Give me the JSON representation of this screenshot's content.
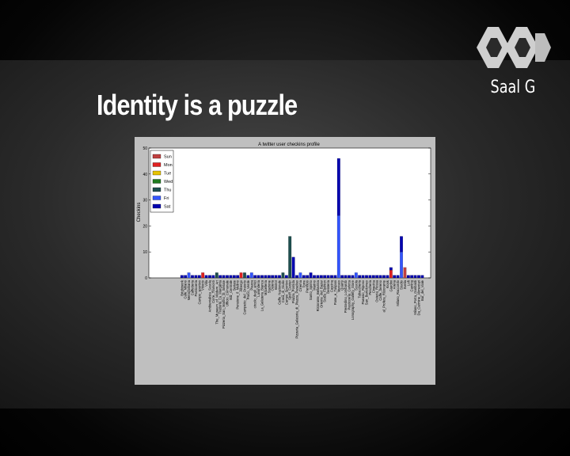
{
  "slide": {
    "title": "Identity is a puzzle",
    "logo_text": "Saal G",
    "logo_icon": "saal-g-logo-icon"
  },
  "colors": {
    "Sun": "#c04040",
    "Mon": "#e02020",
    "Tue": "#e6c200",
    "Wed": "#1f7a1f",
    "Thu": "#1e4f4f",
    "Fri": "#3355ff",
    "Sat": "#0000b0"
  },
  "chart_data": {
    "type": "bar",
    "title": "A twitter user checkins profile",
    "xlabel": "",
    "ylabel": "Checkins",
    "ylim": [
      0,
      50
    ],
    "yticks": [
      0,
      10,
      20,
      30,
      40,
      50
    ],
    "legend_position": "top-left",
    "stacked": true,
    "categories": [
      "Brightwork",
      "Cafe_Milano",
      "Metropolitana",
      "Caffetteria",
      "Pasticceria",
      "Campo_sportivo",
      "Vittorio",
      "Villa",
      "Ambientalista_Scuola",
      "Corte_Tramonti",
      "The_Museum_of_Modern_Art",
      "Trattoria_La_Margarita",
      "Pizzeria_San_Marino_di_Seriate",
      "Ufficio_Comunale",
      "Bar_Centrale",
      "Seriate",
      "Pensione_Il_Mulino",
      "Albergo",
      "Campetto_del_Oratorio",
      "Parco_Verde",
      "Piazza",
      "circolo_degli_amici",
      "Lavanderia",
      "La_Gelateria_Bianca",
      "Macelleria",
      "Stazione",
      "Osteria",
      "Bistrot",
      "Caffe_Nazionale",
      "Casa_di_Giulio",
      "Campo_Sportivo",
      "Sport_Center",
      "Piazza_Pontida",
      "Pizzeria_Gelatoria_di_Piazza_Paradiso",
      "Cinema",
      "Torre",
      "Panificio",
      "Santo_Spirito",
      "Marino",
      "Ristorante_Bellavista",
      "Oriente_del_Bazar",
      "Scala_Fashion",
      "Gelateria",
      "Cascina",
      "Pane_e_Tulipani",
      "Mercato",
      "Quarry",
      "Prestedino_Lombardo",
      "Pasticceria_Carlotta",
      "Lonography_Gallery_Store",
      "Scuola",
      "Tabaccheria",
      "Paeasio_Riposo",
      "San_Bartolomeo",
      "Pescheria",
      "Cinecitta",
      "Osteria_Rossa",
      "Caffe_Sereno",
      "al_Profeta_Ristorante",
      "Kiosk",
      "Giardini",
      "Arena",
      "Milano_Raccordo",
      "Studio",
      "Svelia",
      "Loft",
      "Cantina",
      "Milano_Porta_Garibaldi",
      "Da_Carmine_Alimentari",
      "Bar_del_Viale"
    ],
    "series": [
      {
        "name": "Sun",
        "values": [
          0,
          0,
          0,
          0,
          0,
          0,
          0,
          0,
          0,
          0,
          0,
          0,
          0,
          0,
          0,
          0,
          0,
          0,
          0,
          0,
          0,
          0,
          0,
          0,
          0,
          0,
          0,
          0,
          0,
          0,
          0,
          0,
          0,
          0,
          0,
          0,
          0,
          0,
          0,
          0,
          0,
          0,
          0,
          0,
          0,
          0,
          0,
          0,
          0,
          0,
          0,
          0,
          0,
          0,
          0,
          0,
          0,
          0,
          0,
          0,
          0,
          0,
          0,
          0,
          4,
          0,
          0,
          0,
          0,
          0
        ]
      },
      {
        "name": "Mon",
        "values": [
          0,
          0,
          0,
          0,
          0,
          0,
          2,
          0,
          0,
          0,
          0,
          0,
          0,
          0,
          0,
          0,
          0,
          2,
          0,
          0,
          0,
          0,
          0,
          0,
          0,
          0,
          0,
          0,
          0,
          0,
          0,
          0,
          0,
          0,
          0,
          0,
          0,
          0,
          0,
          0,
          0,
          0,
          0,
          0,
          0,
          0,
          0,
          0,
          0,
          0,
          0,
          0,
          0,
          0,
          0,
          0,
          0,
          0,
          0,
          0,
          3,
          0,
          0,
          0,
          0,
          0,
          0,
          0,
          0,
          0
        ]
      },
      {
        "name": "Tue",
        "values": [
          0,
          0,
          0,
          0,
          0,
          0,
          0,
          0,
          0,
          0,
          0,
          0,
          0,
          0,
          0,
          0,
          0,
          0,
          0,
          0,
          0,
          0,
          0,
          0,
          0,
          0,
          0,
          0,
          0,
          0,
          0,
          0,
          0,
          0,
          0,
          0,
          0,
          0,
          0,
          0,
          0,
          0,
          0,
          0,
          0,
          0,
          0,
          0,
          0,
          0,
          0,
          0,
          0,
          0,
          0,
          0,
          0,
          0,
          0,
          0,
          0,
          0,
          0,
          0,
          0,
          0,
          0,
          0,
          0,
          0
        ]
      },
      {
        "name": "Wed",
        "values": [
          0,
          0,
          0,
          0,
          0,
          0,
          0,
          0,
          0,
          0,
          0,
          0,
          0,
          0,
          0,
          0,
          0,
          0,
          0,
          0,
          0,
          0,
          0,
          0,
          0,
          0,
          0,
          0,
          0,
          0,
          0,
          0,
          0,
          0,
          0,
          0,
          0,
          0,
          0,
          0,
          0,
          0,
          0,
          0,
          0,
          0,
          0,
          0,
          0,
          0,
          0,
          0,
          0,
          0,
          0,
          0,
          0,
          0,
          0,
          0,
          0,
          0,
          0,
          0,
          0,
          0,
          0,
          0,
          0,
          0
        ]
      },
      {
        "name": "Thu",
        "values": [
          0,
          0,
          0,
          0,
          0,
          0,
          0,
          0,
          0,
          0,
          2,
          0,
          0,
          0,
          0,
          0,
          0,
          0,
          2,
          0,
          0,
          0,
          0,
          0,
          0,
          0,
          0,
          0,
          0,
          2,
          0,
          16,
          0,
          0,
          0,
          0,
          0,
          0,
          0,
          0,
          0,
          0,
          0,
          0,
          0,
          0,
          0,
          0,
          0,
          0,
          0,
          0,
          0,
          0,
          0,
          0,
          0,
          0,
          0,
          0,
          0,
          0,
          0,
          0,
          0,
          0,
          0,
          0,
          0,
          0
        ]
      },
      {
        "name": "Fri",
        "values": [
          0,
          0,
          2,
          0,
          0,
          0,
          0,
          0,
          0,
          0,
          0,
          0,
          0,
          0,
          0,
          0,
          0,
          0,
          0,
          0,
          2,
          0,
          0,
          0,
          0,
          0,
          0,
          0,
          0,
          0,
          0,
          0,
          0,
          0,
          2,
          0,
          0,
          0,
          0,
          0,
          0,
          0,
          0,
          0,
          0,
          24,
          0,
          0,
          0,
          0,
          2,
          0,
          0,
          0,
          0,
          0,
          0,
          0,
          0,
          0,
          0,
          0,
          0,
          10,
          0,
          0,
          0,
          0,
          0,
          0
        ]
      },
      {
        "name": "Sat",
        "values": [
          1,
          1,
          0,
          1,
          1,
          1,
          0,
          1,
          1,
          1,
          0,
          1,
          1,
          1,
          1,
          1,
          1,
          0,
          0,
          1,
          0,
          1,
          1,
          1,
          1,
          1,
          1,
          1,
          1,
          0,
          1,
          0,
          8,
          1,
          0,
          1,
          1,
          2,
          1,
          1,
          1,
          1,
          1,
          1,
          1,
          22,
          1,
          1,
          1,
          1,
          0,
          1,
          1,
          1,
          1,
          1,
          1,
          1,
          1,
          1,
          1,
          1,
          1,
          6,
          0,
          1,
          1,
          1,
          1,
          1
        ]
      }
    ]
  }
}
